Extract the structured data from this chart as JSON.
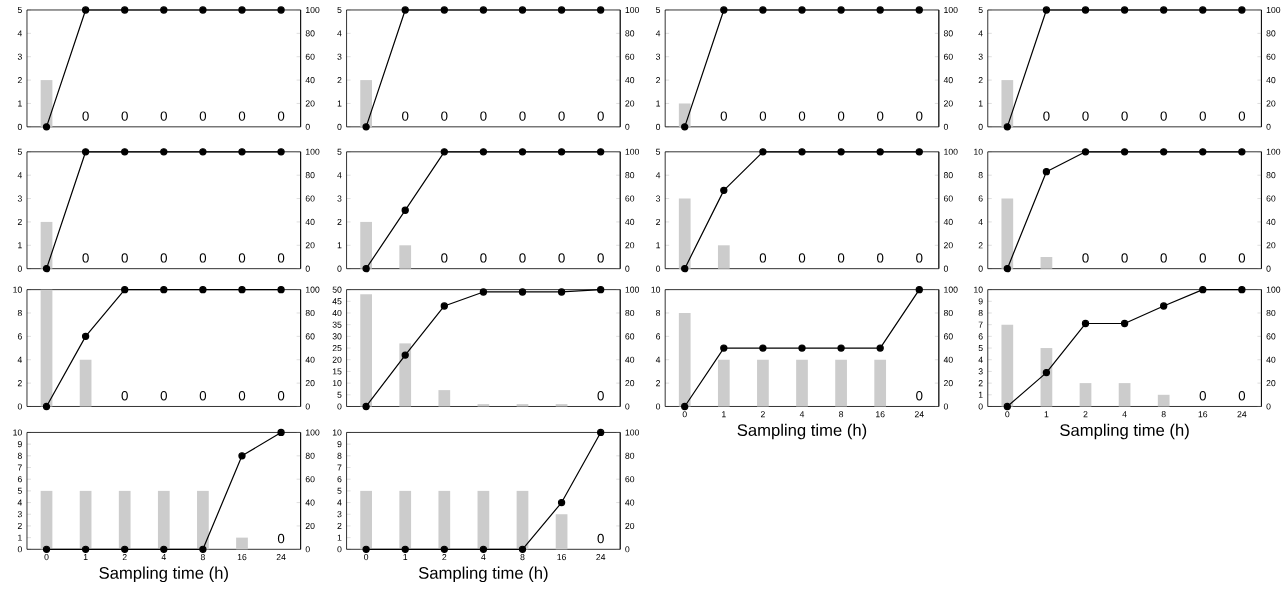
{
  "chart_data": [
    {
      "type": "bar",
      "categories": [
        "0",
        "1",
        "2",
        "4",
        "8",
        "16",
        "24"
      ],
      "tick_labels": "y",
      "marker": "circle",
      "ylim": [
        0,
        5
      ],
      "yticks": [
        0,
        1,
        2,
        3,
        4,
        5
      ],
      "y2lim": [
        0,
        100
      ],
      "y2ticks": [
        0,
        20,
        40,
        60,
        80,
        100
      ],
      "series": [
        {
          "color": "#cccccc",
          "values": [
            2,
            0,
            0,
            0,
            0,
            0,
            0
          ],
          "value_labels": [
            null,
            "0",
            "0",
            "0",
            "0",
            "0",
            "0"
          ]
        },
        {
          "type": "line",
          "axis": "y2",
          "color": "#000000",
          "values": [
            0,
            100,
            100,
            100,
            100,
            100,
            100
          ]
        }
      ]
    },
    {
      "type": "bar",
      "categories": [
        "0",
        "1",
        "2",
        "4",
        "8",
        "16",
        "24"
      ],
      "tick_labels": "y",
      "marker": "circle",
      "ylim": [
        0,
        5
      ],
      "yticks": [
        0,
        1,
        2,
        3,
        4,
        5
      ],
      "y2lim": [
        0,
        100
      ],
      "y2ticks": [
        0,
        20,
        40,
        60,
        80,
        100
      ],
      "series": [
        {
          "color": "#cccccc",
          "values": [
            2,
            0,
            0,
            0,
            0,
            0,
            0
          ],
          "value_labels": [
            null,
            "0",
            "0",
            "0",
            "0",
            "0",
            "0"
          ]
        },
        {
          "type": "line",
          "axis": "y2",
          "color": "#000000",
          "values": [
            0,
            100,
            100,
            100,
            100,
            100,
            100
          ]
        }
      ]
    },
    {
      "type": "bar",
      "categories": [
        "0",
        "1",
        "2",
        "4",
        "8",
        "16",
        "24"
      ],
      "tick_labels": "y",
      "marker": "circle",
      "ylim": [
        0,
        5
      ],
      "yticks": [
        0,
        1,
        2,
        3,
        4,
        5
      ],
      "y2lim": [
        0,
        100
      ],
      "y2ticks": [
        0,
        20,
        40,
        60,
        80,
        100
      ],
      "series": [
        {
          "color": "#cccccc",
          "values": [
            1,
            0,
            0,
            0,
            0,
            0,
            0
          ],
          "value_labels": [
            null,
            "0",
            "0",
            "0",
            "0",
            "0",
            "0"
          ]
        },
        {
          "type": "line",
          "axis": "y2",
          "color": "#000000",
          "values": [
            0,
            100,
            100,
            100,
            100,
            100,
            100
          ]
        }
      ]
    },
    {
      "type": "bar",
      "categories": [
        "0",
        "1",
        "2",
        "4",
        "8",
        "16",
        "24"
      ],
      "tick_labels": "y",
      "marker": "circle",
      "ylim": [
        0,
        5
      ],
      "yticks": [
        0,
        1,
        2,
        3,
        4,
        5
      ],
      "y2lim": [
        0,
        100
      ],
      "y2ticks": [
        0,
        20,
        40,
        60,
        80,
        100
      ],
      "series": [
        {
          "color": "#cccccc",
          "values": [
            2,
            0,
            0,
            0,
            0,
            0,
            0
          ],
          "value_labels": [
            null,
            "0",
            "0",
            "0",
            "0",
            "0",
            "0"
          ]
        },
        {
          "type": "line",
          "axis": "y2",
          "color": "#000000",
          "values": [
            0,
            100,
            100,
            100,
            100,
            100,
            100
          ]
        }
      ]
    },
    {
      "type": "bar",
      "categories": [
        "0",
        "1",
        "2",
        "4",
        "8",
        "16",
        "24"
      ],
      "tick_labels": "y",
      "marker": "circle",
      "ylim": [
        0,
        5
      ],
      "yticks": [
        0,
        1,
        2,
        3,
        4,
        5
      ],
      "y2lim": [
        0,
        100
      ],
      "y2ticks": [
        0,
        20,
        40,
        60,
        80,
        100
      ],
      "series": [
        {
          "color": "#cccccc",
          "values": [
            2,
            0,
            0,
            0,
            0,
            0,
            0
          ],
          "value_labels": [
            null,
            "0",
            "0",
            "0",
            "0",
            "0",
            "0"
          ]
        },
        {
          "type": "line",
          "axis": "y2",
          "color": "#000000",
          "values": [
            0,
            100,
            100,
            100,
            100,
            100,
            100
          ]
        }
      ]
    },
    {
      "type": "bar",
      "categories": [
        "0",
        "1",
        "2",
        "4",
        "8",
        "16",
        "24"
      ],
      "tick_labels": "y",
      "marker": "circle",
      "ylim": [
        0,
        5
      ],
      "yticks": [
        0,
        1,
        2,
        3,
        4,
        5
      ],
      "y2lim": [
        0,
        100
      ],
      "y2ticks": [
        0,
        20,
        40,
        60,
        80,
        100
      ],
      "series": [
        {
          "color": "#cccccc",
          "values": [
            2,
            1,
            0,
            0,
            0,
            0,
            0
          ],
          "value_labels": [
            null,
            null,
            "0",
            "0",
            "0",
            "0",
            "0"
          ]
        },
        {
          "type": "line",
          "axis": "y2",
          "color": "#000000",
          "values": [
            0,
            50,
            100,
            100,
            100,
            100,
            100
          ]
        }
      ]
    },
    {
      "type": "bar",
      "categories": [
        "0",
        "1",
        "2",
        "4",
        "8",
        "16",
        "24"
      ],
      "tick_labels": "y",
      "marker": "circle",
      "ylim": [
        0,
        5
      ],
      "yticks": [
        0,
        1,
        2,
        3,
        4,
        5
      ],
      "y2lim": [
        0,
        100
      ],
      "y2ticks": [
        0,
        20,
        40,
        60,
        80,
        100
      ],
      "series": [
        {
          "color": "#cccccc",
          "values": [
            3,
            1,
            0,
            0,
            0,
            0,
            0
          ],
          "value_labels": [
            null,
            null,
            "0",
            "0",
            "0",
            "0",
            "0"
          ]
        },
        {
          "type": "line",
          "axis": "y2",
          "color": "#000000",
          "values": [
            0,
            67,
            100,
            100,
            100,
            100,
            100
          ]
        }
      ]
    },
    {
      "type": "bar",
      "categories": [
        "0",
        "1",
        "2",
        "4",
        "8",
        "16",
        "24"
      ],
      "tick_labels": "y",
      "marker": "circle",
      "ylim": [
        0,
        10
      ],
      "yticks": [
        0,
        2,
        4,
        6,
        8,
        10
      ],
      "y2lim": [
        0,
        100
      ],
      "y2ticks": [
        0,
        20,
        40,
        60,
        80,
        100
      ],
      "series": [
        {
          "color": "#cccccc",
          "values": [
            6,
            1,
            0,
            0,
            0,
            0,
            0
          ],
          "value_labels": [
            null,
            null,
            "0",
            "0",
            "0",
            "0",
            "0"
          ]
        },
        {
          "type": "line",
          "axis": "y2",
          "color": "#000000",
          "values": [
            0,
            83,
            100,
            100,
            100,
            100,
            100
          ]
        }
      ]
    },
    {
      "type": "bar",
      "categories": [
        "0",
        "1",
        "2",
        "4",
        "8",
        "16",
        "24"
      ],
      "tick_labels": "y",
      "marker": "circle",
      "ylim": [
        0,
        10
      ],
      "yticks": [
        0,
        2,
        4,
        6,
        8,
        10
      ],
      "y2lim": [
        0,
        100
      ],
      "y2ticks": [
        0,
        20,
        40,
        60,
        80,
        100
      ],
      "series": [
        {
          "color": "#cccccc",
          "values": [
            10,
            4,
            0,
            0,
            0,
            0,
            0
          ],
          "value_labels": [
            null,
            null,
            "0",
            "0",
            "0",
            "0",
            "0"
          ]
        },
        {
          "type": "line",
          "axis": "y2",
          "color": "#000000",
          "values": [
            0,
            60,
            100,
            100,
            100,
            100,
            100
          ]
        }
      ]
    },
    {
      "type": "bar",
      "categories": [
        "0",
        "1",
        "2",
        "4",
        "8",
        "16",
        "24"
      ],
      "tick_labels": "y",
      "marker": "circle",
      "ylim": [
        0,
        50
      ],
      "yticks": [
        0,
        5,
        10,
        15,
        20,
        25,
        30,
        35,
        40,
        45,
        50
      ],
      "y2lim": [
        0,
        100
      ],
      "y2ticks": [
        0,
        20,
        40,
        60,
        80,
        100
      ],
      "series": [
        {
          "color": "#cccccc",
          "values": [
            48,
            27,
            7,
            1,
            1,
            1,
            0
          ],
          "value_labels": [
            null,
            null,
            null,
            null,
            null,
            null,
            "0"
          ]
        },
        {
          "type": "line",
          "axis": "y2",
          "color": "#000000",
          "values": [
            0,
            44,
            86,
            98,
            98,
            98,
            100
          ]
        }
      ]
    },
    {
      "type": "bar",
      "categories": [
        "0",
        "1",
        "2",
        "4",
        "8",
        "16",
        "24"
      ],
      "xlabel": "Sampling time (h)",
      "marker": "circle",
      "ylim": [
        0,
        10
      ],
      "yticks": [
        0,
        2,
        4,
        6,
        8,
        10
      ],
      "y2lim": [
        0,
        100
      ],
      "y2ticks": [
        0,
        20,
        40,
        60,
        80,
        100
      ],
      "series": [
        {
          "color": "#cccccc",
          "values": [
            8,
            4,
            4,
            4,
            4,
            4,
            0
          ],
          "value_labels": [
            null,
            null,
            null,
            null,
            null,
            null,
            "0"
          ]
        },
        {
          "type": "line",
          "axis": "y2",
          "color": "#000000",
          "values": [
            0,
            50,
            50,
            50,
            50,
            50,
            100
          ]
        }
      ]
    },
    {
      "type": "bar",
      "categories": [
        "0",
        "1",
        "2",
        "4",
        "8",
        "16",
        "24"
      ],
      "xlabel": "Sampling time (h)",
      "marker": "circle",
      "ylim": [
        0,
        10
      ],
      "yticks": [
        0,
        1,
        2,
        3,
        4,
        5,
        6,
        7,
        8,
        9,
        10
      ],
      "y2lim": [
        0,
        100
      ],
      "y2ticks": [
        0,
        20,
        40,
        60,
        80,
        100
      ],
      "series": [
        {
          "color": "#cccccc",
          "values": [
            7,
            5,
            2,
            2,
            1,
            0,
            0
          ],
          "value_labels": [
            null,
            null,
            null,
            null,
            null,
            "0",
            "0"
          ]
        },
        {
          "type": "line",
          "axis": "y2",
          "color": "#000000",
          "values": [
            0,
            29,
            71,
            71,
            86,
            100,
            100
          ]
        }
      ]
    },
    {
      "type": "bar",
      "categories": [
        "0",
        "1",
        "2",
        "4",
        "8",
        "16",
        "24"
      ],
      "xlabel": "Sampling time (h)",
      "marker": "circle",
      "ylim": [
        0,
        10
      ],
      "yticks": [
        0,
        1,
        2,
        3,
        4,
        5,
        6,
        7,
        8,
        9,
        10
      ],
      "y2lim": [
        0,
        100
      ],
      "y2ticks": [
        0,
        20,
        40,
        60,
        80,
        100
      ],
      "series": [
        {
          "color": "#cccccc",
          "values": [
            5,
            5,
            5,
            5,
            5,
            1,
            0
          ],
          "value_labels": [
            null,
            null,
            null,
            null,
            null,
            null,
            "0"
          ]
        },
        {
          "type": "line",
          "axis": "y2",
          "color": "#000000",
          "values": [
            0,
            0,
            0,
            0,
            0,
            80,
            100
          ]
        }
      ]
    },
    {
      "type": "bar",
      "categories": [
        "0",
        "1",
        "2",
        "4",
        "8",
        "16",
        "24"
      ],
      "xlabel": "Sampling time (h)",
      "marker": "circle",
      "ylim": [
        0,
        10
      ],
      "yticks": [
        0,
        1,
        2,
        3,
        4,
        5,
        6,
        7,
        8,
        9,
        10
      ],
      "y2lim": [
        0,
        100
      ],
      "y2ticks": [
        0,
        20,
        40,
        60,
        80,
        100
      ],
      "series": [
        {
          "color": "#cccccc",
          "values": [
            5,
            5,
            5,
            5,
            5,
            3,
            0
          ],
          "value_labels": [
            null,
            null,
            null,
            null,
            null,
            null,
            "0"
          ]
        },
        {
          "type": "line",
          "axis": "y2",
          "color": "#000000",
          "values": [
            0,
            0,
            0,
            0,
            0,
            40,
            100
          ]
        }
      ]
    }
  ]
}
